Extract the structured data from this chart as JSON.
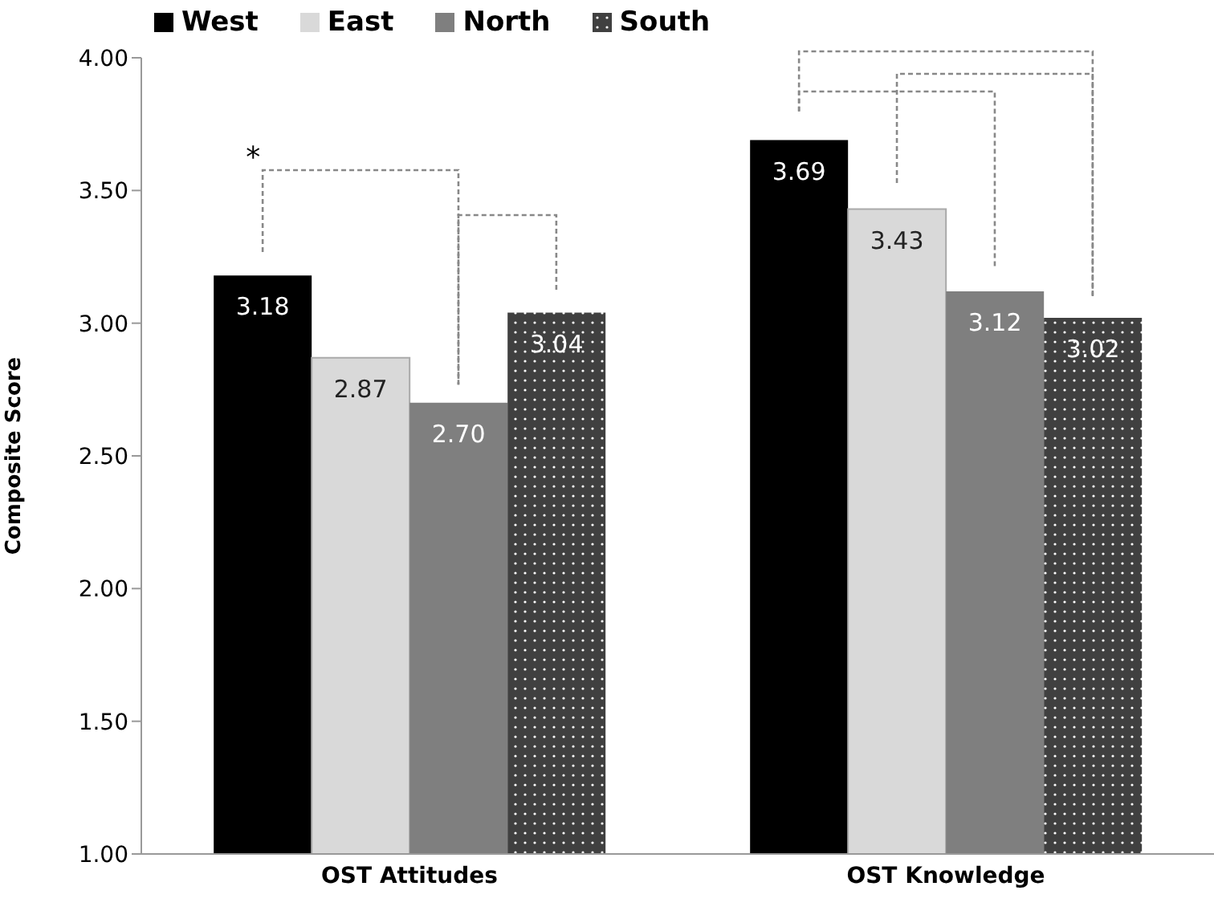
{
  "chart_data": {
    "type": "bar",
    "ylabel": "Composite Score",
    "categories": [
      "OST Attitudes",
      "OST Knowledge"
    ],
    "series": [
      {
        "name": "West",
        "color": "#000000",
        "values": [
          3.18,
          3.69
        ],
        "value_labels": [
          "3.18",
          "3.69"
        ]
      },
      {
        "name": "East",
        "color": "#d9d9d9",
        "values": [
          2.87,
          3.43
        ],
        "value_labels": [
          "2.87",
          "3.43"
        ]
      },
      {
        "name": "North",
        "color": "#7f7f7f",
        "values": [
          2.7,
          3.12
        ],
        "value_labels": [
          "2.70",
          "3.12"
        ]
      },
      {
        "name": "South",
        "color": "#404040",
        "values": [
          3.04,
          3.02
        ],
        "value_labels": [
          "3.04",
          "3.02"
        ]
      }
    ],
    "ylim": [
      1,
      4
    ],
    "yticks": [
      {
        "value": 1,
        "label": "1.00"
      },
      {
        "value": 1.5,
        "label": "1.50"
      },
      {
        "value": 2,
        "label": "2.00"
      },
      {
        "value": 2.5,
        "label": "2.50"
      },
      {
        "value": 3,
        "label": "3.00"
      },
      {
        "value": 3.5,
        "label": "3.50"
      },
      {
        "value": 4,
        "label": "4.00"
      }
    ],
    "legend": "top left",
    "grid": false,
    "annotations": [
      "*"
    ]
  }
}
